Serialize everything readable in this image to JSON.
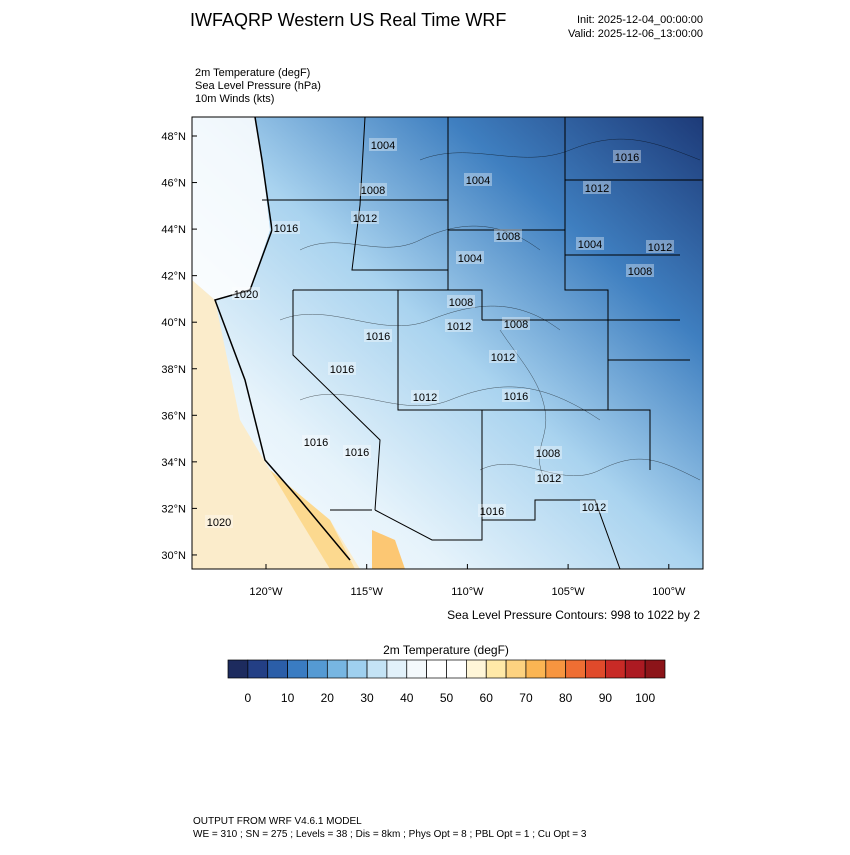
{
  "header": {
    "title": "IWFAQRP Western US Real Time WRF",
    "init": "Init: 2025-12-04_00:00:00",
    "valid": "Valid: 2025-12-06_13:00:00"
  },
  "fields": [
    "2m Temperature   (degF)",
    "Sea Level Pressure   (hPa)",
    "10m Winds   (kts)"
  ],
  "map": {
    "lat_labels": [
      "48°N",
      "46°N",
      "44°N",
      "42°N",
      "40°N",
      "38°N",
      "36°N",
      "34°N",
      "32°N",
      "30°N"
    ],
    "lon_labels": [
      "120°W",
      "115°W",
      "110°W",
      "105°W",
      "100°W"
    ],
    "contour_labels": [
      "1004",
      "1008",
      "1012",
      "1016",
      "1004",
      "1008",
      "1004",
      "1012",
      "1016",
      "1004",
      "1012",
      "1008",
      "1020",
      "1008",
      "1012",
      "1008",
      "1016",
      "1016",
      "1012",
      "1012",
      "1016",
      "1016",
      "1016",
      "1008",
      "1012",
      "1016",
      "1012",
      "1020"
    ],
    "contour_note": "Sea Level Pressure Contours: 998 to 1022 by 2"
  },
  "colorbar": {
    "title": "2m Temperature  (degF)",
    "min": -5,
    "max": 105,
    "colors": [
      "#1d2b5e",
      "#233f85",
      "#2b5ea8",
      "#3a7cc2",
      "#559ad3",
      "#77b6e2",
      "#9fd0ef",
      "#c4e3f5",
      "#e2f1fa",
      "#f4f9fc",
      "#ffffff",
      "#ffffff",
      "#fff6d8",
      "#ffe9a8",
      "#fdd280",
      "#fbb553",
      "#f79540",
      "#ef6e33",
      "#e04a2b",
      "#c82a26",
      "#ac1a22",
      "#8c1419"
    ],
    "ticks": [
      0,
      10,
      20,
      30,
      40,
      50,
      60,
      70,
      80,
      90,
      100
    ]
  },
  "footer": [
    "OUTPUT FROM WRF V4.6.1 MODEL",
    "WE = 310 ; SN = 275 ; Levels = 38 ; Dis = 8km ; Phys Opt = 8 ; PBL Opt = 1 ; Cu Opt = 3"
  ]
}
